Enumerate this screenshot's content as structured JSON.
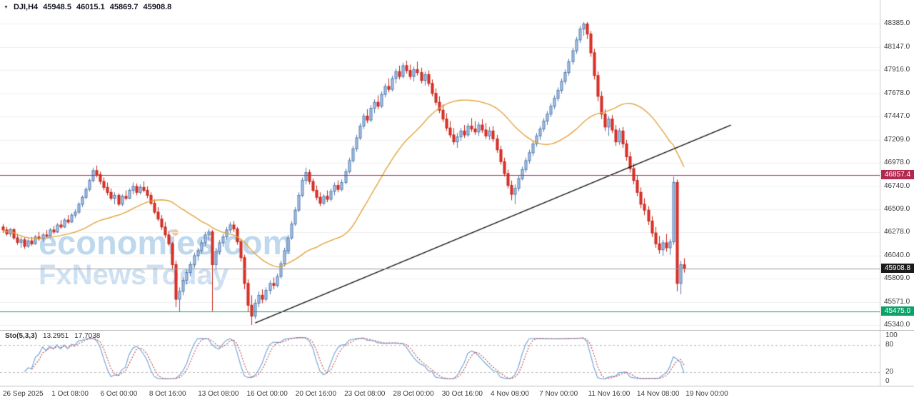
{
  "icons": {
    "dropdown": "▼"
  },
  "header": {
    "symbol": "DJI,H4",
    "open": "45948.5",
    "high": "46015.1",
    "low": "45869.7",
    "close": "45908.8"
  },
  "watermark": {
    "line1": "economies.com",
    "line2": "FxNewsToday"
  },
  "chart_data": {
    "type": "candlestick",
    "symbol": "DJI",
    "timeframe": "H4",
    "ylim": [
      45340,
      48385
    ],
    "grid": "horizontal-faint",
    "y_ticks": [
      "48385.0",
      "48147.0",
      "47916.0",
      "47678.0",
      "47447.0",
      "47209.0",
      "46978.0",
      "46740.0",
      "46509.0",
      "46278.0",
      "46040.0",
      "45809.0",
      "45571.0",
      "45340.0"
    ],
    "x_labels": [
      "26 Sep 2025",
      "1 Oct 08:00",
      "6 Oct 00:00",
      "8 Oct 16:00",
      "13 Oct 08:00",
      "16 Oct 00:00",
      "20 Oct 16:00",
      "23 Oct 08:00",
      "28 Oct 00:00",
      "30 Oct 16:00",
      "4 Nov 08:00",
      "7 Nov 00:00",
      "11 Nov 16:00",
      "14 Nov 08:00",
      "19 Nov 00:00"
    ],
    "levels": [
      {
        "name": "resistance",
        "value": "46857.4",
        "color": "#b22950"
      },
      {
        "name": "current",
        "value": "45908.8",
        "color": "#1b1b1b",
        "line_color": "#9a9a9a"
      },
      {
        "name": "support",
        "value": "45475.0",
        "color": "#0aa268"
      }
    ],
    "moving_average": {
      "period": 30,
      "color": "#e2a33b"
    },
    "trendline": {
      "from_index": 70,
      "from_price": 45360,
      "to_index": 202,
      "to_price": 47360,
      "color": "#111111"
    },
    "style": {
      "bull_fill": "#adc6e8",
      "bull_border": "#4f79ad",
      "bear_fill": "#e3342a",
      "bear_border": "#c42318"
    },
    "indicator": {
      "name": "Sto(5,3,3)",
      "k_value": "13.2951",
      "d_value": "17.7038",
      "k_color": "#74a5d8",
      "d_color": "#c0504d",
      "axis_labels": [
        "100",
        "80",
        "20",
        "0"
      ],
      "upper_level": 80,
      "lower_level": 20,
      "range": [
        0,
        100
      ]
    },
    "candles": [
      [
        46330,
        46360,
        46270,
        46300
      ],
      [
        46300,
        46330,
        46240,
        46260
      ],
      [
        46260,
        46320,
        46230,
        46305
      ],
      [
        46305,
        46315,
        46200,
        46220
      ],
      [
        46220,
        46260,
        46150,
        46175
      ],
      [
        46175,
        46230,
        46120,
        46200
      ],
      [
        46200,
        46225,
        46110,
        46135
      ],
      [
        46135,
        46210,
        46120,
        46190
      ],
      [
        46190,
        46230,
        46140,
        46160
      ],
      [
        46160,
        46250,
        46150,
        46230
      ],
      [
        46230,
        46280,
        46190,
        46210
      ],
      [
        46210,
        46270,
        46180,
        46250
      ],
      [
        46250,
        46300,
        46220,
        46240
      ],
      [
        46240,
        46320,
        46230,
        46300
      ],
      [
        46300,
        46340,
        46260,
        46280
      ],
      [
        46280,
        46370,
        46270,
        46350
      ],
      [
        46350,
        46400,
        46310,
        46330
      ],
      [
        46330,
        46420,
        46320,
        46400
      ],
      [
        46400,
        46450,
        46360,
        46380
      ],
      [
        46380,
        46470,
        46370,
        46450
      ],
      [
        46450,
        46510,
        46420,
        46480
      ],
      [
        46480,
        46580,
        46460,
        46560
      ],
      [
        46560,
        46650,
        46530,
        46630
      ],
      [
        46630,
        46730,
        46610,
        46710
      ],
      [
        46710,
        46820,
        46690,
        46800
      ],
      [
        46800,
        46930,
        46780,
        46900
      ],
      [
        46900,
        46950,
        46830,
        46860
      ],
      [
        46860,
        46890,
        46760,
        46790
      ],
      [
        46790,
        46830,
        46700,
        46730
      ],
      [
        46730,
        46780,
        46650,
        46680
      ],
      [
        46680,
        46720,
        46600,
        46620
      ],
      [
        46620,
        46680,
        46560,
        46650
      ],
      [
        46650,
        46670,
        46540,
        46560
      ],
      [
        46560,
        46660,
        46540,
        46640
      ],
      [
        46640,
        46700,
        46600,
        46620
      ],
      [
        46620,
        46720,
        46610,
        46700
      ],
      [
        46700,
        46780,
        46660,
        46740
      ],
      [
        46740,
        46770,
        46650,
        46680
      ],
      [
        46680,
        46760,
        46660,
        46730
      ],
      [
        46730,
        46790,
        46680,
        46700
      ],
      [
        46700,
        46740,
        46620,
        46650
      ],
      [
        46650,
        46680,
        46550,
        46570
      ],
      [
        46570,
        46610,
        46460,
        46480
      ],
      [
        46480,
        46530,
        46390,
        46410
      ],
      [
        46410,
        46450,
        46300,
        46330
      ],
      [
        46330,
        46380,
        46220,
        46250
      ],
      [
        46250,
        46290,
        46140,
        46160
      ],
      [
        46160,
        46180,
        45900,
        45950
      ],
      [
        45950,
        45990,
        45520,
        45600
      ],
      [
        45600,
        45720,
        45470,
        45680
      ],
      [
        45680,
        45820,
        45640,
        45790
      ],
      [
        45790,
        45900,
        45750,
        45870
      ],
      [
        45870,
        45980,
        45830,
        45950
      ],
      [
        45950,
        46070,
        45920,
        46040
      ],
      [
        46040,
        46120,
        45990,
        46090
      ],
      [
        46090,
        46200,
        46060,
        46170
      ],
      [
        46170,
        46280,
        46140,
        46250
      ],
      [
        46250,
        46310,
        46200,
        46280
      ],
      [
        46280,
        46300,
        45480,
        45950
      ],
      [
        45950,
        46120,
        45900,
        46080
      ],
      [
        46080,
        46200,
        46050,
        46170
      ],
      [
        46170,
        46260,
        46130,
        46230
      ],
      [
        46230,
        46330,
        46200,
        46300
      ],
      [
        46300,
        46380,
        46270,
        46350
      ],
      [
        46350,
        46390,
        46280,
        46310
      ],
      [
        46310,
        46330,
        46150,
        46180
      ],
      [
        46180,
        46210,
        45980,
        46020
      ],
      [
        46020,
        46050,
        45700,
        45760
      ],
      [
        45760,
        45800,
        45470,
        45540
      ],
      [
        45540,
        45640,
        45340,
        45430
      ],
      [
        45430,
        45600,
        45400,
        45560
      ],
      [
        45560,
        45680,
        45520,
        45640
      ],
      [
        45640,
        45700,
        45560,
        45600
      ],
      [
        45600,
        45720,
        45580,
        45690
      ],
      [
        45690,
        45790,
        45650,
        45760
      ],
      [
        45760,
        45820,
        45700,
        45740
      ],
      [
        45740,
        45860,
        45720,
        45830
      ],
      [
        45830,
        45990,
        45810,
        45960
      ],
      [
        45960,
        46120,
        45930,
        46090
      ],
      [
        46090,
        46250,
        46060,
        46220
      ],
      [
        46220,
        46390,
        46200,
        46360
      ],
      [
        46360,
        46530,
        46340,
        46500
      ],
      [
        46500,
        46680,
        46480,
        46650
      ],
      [
        46650,
        46830,
        46630,
        46800
      ],
      [
        46800,
        46930,
        46760,
        46880
      ],
      [
        46880,
        46910,
        46760,
        46790
      ],
      [
        46790,
        46820,
        46680,
        46700
      ],
      [
        46700,
        46750,
        46600,
        46630
      ],
      [
        46630,
        46680,
        46540,
        46570
      ],
      [
        46570,
        46660,
        46550,
        46640
      ],
      [
        46640,
        46700,
        46580,
        46610
      ],
      [
        46610,
        46720,
        46590,
        46690
      ],
      [
        46690,
        46780,
        46650,
        46750
      ],
      [
        46750,
        46800,
        46680,
        46710
      ],
      [
        46710,
        46810,
        46690,
        46780
      ],
      [
        46780,
        46920,
        46760,
        46890
      ],
      [
        46890,
        47030,
        46870,
        47000
      ],
      [
        47000,
        47150,
        46980,
        47120
      ],
      [
        47120,
        47260,
        47090,
        47230
      ],
      [
        47230,
        47380,
        47210,
        47350
      ],
      [
        47350,
        47480,
        47320,
        47450
      ],
      [
        47450,
        47520,
        47380,
        47410
      ],
      [
        47410,
        47560,
        47390,
        47530
      ],
      [
        47530,
        47620,
        47480,
        47590
      ],
      [
        47590,
        47660,
        47520,
        47550
      ],
      [
        47550,
        47700,
        47530,
        47670
      ],
      [
        47670,
        47780,
        47640,
        47750
      ],
      [
        47750,
        47830,
        47690,
        47720
      ],
      [
        47720,
        47860,
        47700,
        47830
      ],
      [
        47830,
        47930,
        47780,
        47900
      ],
      [
        47900,
        47960,
        47820,
        47850
      ],
      [
        47850,
        47990,
        47830,
        47960
      ],
      [
        47960,
        48010,
        47880,
        47910
      ],
      [
        47910,
        47970,
        47820,
        47850
      ],
      [
        47850,
        47950,
        47800,
        47920
      ],
      [
        47920,
        48000,
        47860,
        47890
      ],
      [
        47890,
        47940,
        47780,
        47810
      ],
      [
        47810,
        47900,
        47760,
        47870
      ],
      [
        47870,
        47910,
        47750,
        47780
      ],
      [
        47780,
        47820,
        47650,
        47680
      ],
      [
        47680,
        47730,
        47560,
        47590
      ],
      [
        47590,
        47650,
        47480,
        47510
      ],
      [
        47510,
        47570,
        47390,
        47420
      ],
      [
        47420,
        47480,
        47300,
        47330
      ],
      [
        47330,
        47400,
        47230,
        47260
      ],
      [
        47260,
        47330,
        47160,
        47190
      ],
      [
        47190,
        47280,
        47130,
        47240
      ],
      [
        47240,
        47330,
        47200,
        47300
      ],
      [
        47300,
        47360,
        47230,
        47260
      ],
      [
        47260,
        47380,
        47240,
        47350
      ],
      [
        47350,
        47430,
        47290,
        47320
      ],
      [
        47320,
        47400,
        47260,
        47290
      ],
      [
        47290,
        47390,
        47250,
        47360
      ],
      [
        47360,
        47420,
        47280,
        47310
      ],
      [
        47310,
        47380,
        47220,
        47250
      ],
      [
        47250,
        47340,
        47210,
        47300
      ],
      [
        47300,
        47350,
        47190,
        47220
      ],
      [
        47220,
        47260,
        47080,
        47110
      ],
      [
        47110,
        47150,
        46960,
        46990
      ],
      [
        46990,
        47030,
        46840,
        46870
      ],
      [
        46870,
        46910,
        46720,
        46750
      ],
      [
        46750,
        46800,
        46600,
        46660
      ],
      [
        46660,
        46760,
        46560,
        46720
      ],
      [
        46720,
        46850,
        46690,
        46820
      ],
      [
        46820,
        46940,
        46800,
        46910
      ],
      [
        46910,
        47030,
        46880,
        47000
      ],
      [
        47000,
        47110,
        46970,
        47080
      ],
      [
        47080,
        47200,
        47050,
        47170
      ],
      [
        47170,
        47280,
        47140,
        47250
      ],
      [
        47250,
        47350,
        47210,
        47320
      ],
      [
        47320,
        47430,
        47290,
        47400
      ],
      [
        47400,
        47500,
        47360,
        47470
      ],
      [
        47470,
        47580,
        47440,
        47550
      ],
      [
        47550,
        47660,
        47520,
        47630
      ],
      [
        47630,
        47740,
        47600,
        47710
      ],
      [
        47710,
        47830,
        47680,
        47800
      ],
      [
        47800,
        47920,
        47770,
        47890
      ],
      [
        47890,
        48030,
        47860,
        48000
      ],
      [
        48000,
        48140,
        47970,
        48110
      ],
      [
        48110,
        48250,
        48080,
        48220
      ],
      [
        48220,
        48360,
        48190,
        48330
      ],
      [
        48330,
        48400,
        48260,
        48380
      ],
      [
        48380,
        48400,
        48230,
        48280
      ],
      [
        48280,
        48310,
        48050,
        48090
      ],
      [
        48090,
        48130,
        47820,
        47860
      ],
      [
        47860,
        47900,
        47600,
        47650
      ],
      [
        47650,
        47700,
        47420,
        47470
      ],
      [
        47470,
        47520,
        47300,
        47340
      ],
      [
        47340,
        47450,
        47250,
        47420
      ],
      [
        47420,
        47460,
        47280,
        47310
      ],
      [
        47310,
        47360,
        47150,
        47190
      ],
      [
        47190,
        47330,
        47160,
        47300
      ],
      [
        47300,
        47340,
        47130,
        47170
      ],
      [
        47170,
        47210,
        47000,
        47040
      ],
      [
        47040,
        47090,
        46880,
        46920
      ],
      [
        46920,
        46970,
        46760,
        46800
      ],
      [
        46800,
        46850,
        46640,
        46680
      ],
      [
        46680,
        46730,
        46520,
        46560
      ],
      [
        46560,
        46620,
        46450,
        46500
      ],
      [
        46500,
        46540,
        46350,
        46390
      ],
      [
        46390,
        46440,
        46230,
        46270
      ],
      [
        46270,
        46330,
        46120,
        46160
      ],
      [
        46160,
        46240,
        46060,
        46100
      ],
      [
        46100,
        46200,
        46040,
        46170
      ],
      [
        46170,
        46260,
        46080,
        46120
      ],
      [
        46120,
        46210,
        46050,
        46180
      ],
      [
        46180,
        46840,
        46150,
        46780
      ],
      [
        46780,
        46810,
        45680,
        45760
      ],
      [
        45760,
        45990,
        45650,
        45950
      ],
      [
        45948.5,
        46015.1,
        45869.7,
        45908.8
      ]
    ]
  }
}
